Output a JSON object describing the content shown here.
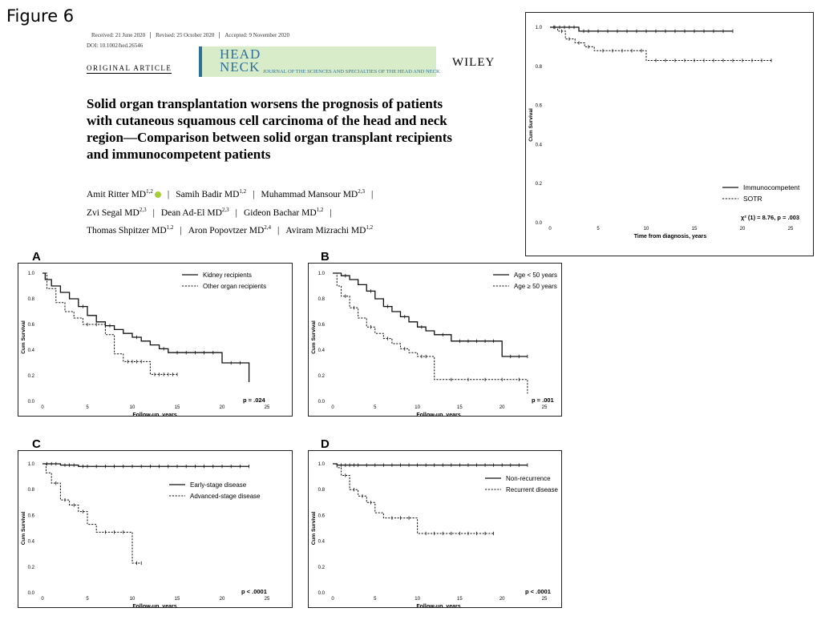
{
  "figure_label": "Figure 6",
  "paper": {
    "received": "Received: 21 June 2020",
    "revised": "Revised: 25 October 2020",
    "accepted": "Accepted: 9 November 2020",
    "doi": "DOI: 10.1002/hed.26546",
    "article_type": "ORIGINAL ARTICLE",
    "journal_line1": "HEAD",
    "journal_line2": "NECK",
    "journal_sub": "JOURNAL OF THE SCIENCES AND SPECIALTIES OF THE HEAD AND NECK",
    "publisher": "WILEY",
    "title": "Solid organ transplantation worsens the prognosis of patients with cutaneous squamous cell carcinoma of the head and neck region—Comparison between solid organ transplant recipients and immunocompetent patients",
    "authors": [
      {
        "name": "Amit Ritter MD",
        "sup": "1,2"
      },
      {
        "name": "Samih Badir MD",
        "sup": "1,2"
      },
      {
        "name": "Muhammad Mansour MD",
        "sup": "2,3"
      },
      {
        "name": "Zvi Segal MD",
        "sup": "2,3"
      },
      {
        "name": "Dean Ad-El MD",
        "sup": "2,3"
      },
      {
        "name": "Gideon Bachar MD",
        "sup": "1,2"
      },
      {
        "name": "Thomas Shpitzer MD",
        "sup": "1,2"
      },
      {
        "name": "Aron Popovtzer MD",
        "sup": "2,4"
      },
      {
        "name": "Aviram Mizrachi MD",
        "sup": "1,2"
      }
    ]
  },
  "chart_data": [
    {
      "id": "main",
      "type": "line",
      "panel_label": "",
      "xlabel": "Time from diagnosis, years",
      "ylabel": "Cum Survival",
      "xticks": [
        0,
        5,
        10,
        15,
        20,
        25
      ],
      "yticks": [
        0.0,
        0.2,
        0.4,
        0.6,
        0.8,
        1.0
      ],
      "xlim": [
        0,
        25
      ],
      "ylim": [
        0,
        1.0
      ],
      "legend_position": "bottom-right",
      "annotation": "χ² (1) = 8.76, p = .003",
      "series": [
        {
          "name": "Immunocompetent",
          "style": "solid",
          "steps": [
            [
              0,
              1.0
            ],
            [
              3,
              0.98
            ],
            [
              19,
              0.98
            ]
          ],
          "censors": [
            0.5,
            1,
            1.5,
            2,
            2.5,
            3.5,
            4,
            5,
            6,
            7,
            8,
            9,
            10,
            11,
            12,
            13,
            14,
            15,
            16,
            17,
            18,
            19
          ]
        },
        {
          "name": "SOTR",
          "style": "dashed",
          "steps": [
            [
              0,
              1.0
            ],
            [
              0.8,
              0.98
            ],
            [
              1.6,
              0.94
            ],
            [
              2.6,
              0.92
            ],
            [
              3.6,
              0.9
            ],
            [
              4.6,
              0.88
            ],
            [
              10,
              0.83
            ],
            [
              23,
              0.83
            ]
          ],
          "censors": [
            0.4,
            1.2,
            2,
            3,
            4,
            5.5,
            6.5,
            7.5,
            8.5,
            9.5,
            11,
            12,
            13,
            14,
            15,
            16,
            17,
            18,
            19,
            20,
            21,
            22,
            23
          ]
        }
      ]
    },
    {
      "id": "A",
      "type": "line",
      "panel_label": "A",
      "xlabel": "Follow-up, years",
      "ylabel": "Cum Survival",
      "xticks": [
        0,
        5,
        10,
        15,
        20,
        25
      ],
      "yticks": [
        0.0,
        0.2,
        0.4,
        0.6,
        0.8,
        1.0
      ],
      "xlim": [
        0,
        25
      ],
      "ylim": [
        0,
        1.0
      ],
      "legend_position": "top-right",
      "annotation": "p = .024",
      "series": [
        {
          "name": "Kidney recipients",
          "style": "solid",
          "steps": [
            [
              0,
              1.0
            ],
            [
              0.3,
              0.95
            ],
            [
              1,
              0.9
            ],
            [
              2,
              0.85
            ],
            [
              3,
              0.8
            ],
            [
              4,
              0.74
            ],
            [
              5,
              0.67
            ],
            [
              6,
              0.62
            ],
            [
              7,
              0.59
            ],
            [
              8,
              0.56
            ],
            [
              9,
              0.53
            ],
            [
              10,
              0.5
            ],
            [
              11,
              0.47
            ],
            [
              12,
              0.44
            ],
            [
              13,
              0.41
            ],
            [
              14,
              0.38
            ],
            [
              20,
              0.3
            ],
            [
              23,
              0.15
            ]
          ],
          "censors": [
            4.5,
            7.5,
            10.5,
            13.5,
            15,
            16,
            17,
            18,
            19,
            21,
            22
          ]
        },
        {
          "name": "Other organ recipients",
          "style": "dashed",
          "steps": [
            [
              0,
              1.0
            ],
            [
              0.5,
              0.88
            ],
            [
              1.5,
              0.77
            ],
            [
              2.5,
              0.7
            ],
            [
              3.5,
              0.65
            ],
            [
              4.5,
              0.6
            ],
            [
              7,
              0.52
            ],
            [
              8,
              0.37
            ],
            [
              9,
              0.31
            ],
            [
              12,
              0.21
            ],
            [
              15,
              0.21
            ]
          ],
          "censors": [
            5,
            6,
            9.5,
            10,
            10.5,
            11,
            12.5,
            13,
            13.5,
            14,
            14.5,
            15
          ]
        }
      ]
    },
    {
      "id": "B",
      "type": "line",
      "panel_label": "B",
      "xlabel": "Follow-up, years",
      "ylabel": "Cum Survival",
      "xticks": [
        0,
        5,
        10,
        15,
        20,
        25
      ],
      "yticks": [
        0.0,
        0.2,
        0.4,
        0.6,
        0.8,
        1.0
      ],
      "xlim": [
        0,
        25
      ],
      "ylim": [
        0,
        1.0
      ],
      "legend_position": "top-right",
      "annotation": "p = .001",
      "series": [
        {
          "name": "Age < 50 years",
          "style": "solid",
          "steps": [
            [
              0,
              1.0
            ],
            [
              1,
              0.98
            ],
            [
              2,
              0.95
            ],
            [
              3,
              0.91
            ],
            [
              4,
              0.86
            ],
            [
              5,
              0.8
            ],
            [
              6,
              0.74
            ],
            [
              7,
              0.7
            ],
            [
              8,
              0.66
            ],
            [
              9,
              0.62
            ],
            [
              10,
              0.58
            ],
            [
              11,
              0.55
            ],
            [
              12,
              0.52
            ],
            [
              14,
              0.47
            ],
            [
              20,
              0.35
            ],
            [
              23,
              0.35
            ]
          ],
          "censors": [
            1.5,
            4.5,
            6.5,
            8.5,
            10.5,
            13,
            15,
            16,
            17,
            18,
            19,
            21,
            22,
            23
          ]
        },
        {
          "name": "Age ≥ 50 years",
          "style": "dashed",
          "steps": [
            [
              0,
              1.0
            ],
            [
              0.5,
              0.9
            ],
            [
              1,
              0.82
            ],
            [
              2,
              0.73
            ],
            [
              3,
              0.65
            ],
            [
              4,
              0.58
            ],
            [
              5,
              0.53
            ],
            [
              6,
              0.49
            ],
            [
              7,
              0.45
            ],
            [
              8,
              0.41
            ],
            [
              9,
              0.38
            ],
            [
              10,
              0.35
            ],
            [
              12,
              0.17
            ],
            [
              23,
              0.06
            ]
          ],
          "censors": [
            1.5,
            2.5,
            4.5,
            6.5,
            8.5,
            10.5,
            11,
            14,
            16,
            18,
            20,
            22
          ]
        }
      ]
    },
    {
      "id": "C",
      "type": "line",
      "panel_label": "C",
      "xlabel": "Follow-up, years",
      "ylabel": "Cum Survival",
      "xticks": [
        0,
        5,
        10,
        15,
        20,
        25
      ],
      "yticks": [
        0.0,
        0.2,
        0.4,
        0.6,
        0.8,
        1.0
      ],
      "xlim": [
        0,
        25
      ],
      "ylim": [
        0,
        1.0
      ],
      "legend_position": "top-right",
      "annotation": "p < .0001",
      "series": [
        {
          "name": "Early-stage disease",
          "style": "solid",
          "steps": [
            [
              0,
              1.0
            ],
            [
              2,
              0.99
            ],
            [
              4,
              0.98
            ],
            [
              23,
              0.98
            ]
          ],
          "censors": [
            0.5,
            1,
            1.5,
            2.5,
            3,
            3.5,
            4.5,
            5,
            6,
            7,
            8,
            9,
            10,
            11,
            12,
            13,
            14,
            15,
            16,
            17,
            18,
            19,
            20,
            21,
            22,
            23
          ]
        },
        {
          "name": "Advanced-stage disease",
          "style": "dashed",
          "steps": [
            [
              0,
              1.0
            ],
            [
              0.4,
              0.93
            ],
            [
              1,
              0.85
            ],
            [
              2,
              0.72
            ],
            [
              3,
              0.68
            ],
            [
              4,
              0.63
            ],
            [
              5,
              0.53
            ],
            [
              6,
              0.47
            ],
            [
              10,
              0.23
            ],
            [
              11,
              0.23
            ]
          ],
          "censors": [
            1.5,
            2.5,
            3.5,
            4.5,
            7,
            8,
            9,
            10.5,
            11
          ]
        }
      ]
    },
    {
      "id": "D",
      "type": "line",
      "panel_label": "D",
      "xlabel": "Follow-up, years",
      "ylabel": "Cum Survival",
      "xticks": [
        0,
        5,
        10,
        15,
        20,
        25
      ],
      "yticks": [
        0.0,
        0.2,
        0.4,
        0.6,
        0.8,
        1.0
      ],
      "xlim": [
        0,
        25
      ],
      "ylim": [
        0,
        1.0
      ],
      "legend_position": "top-right",
      "annotation": "p < .0001",
      "series": [
        {
          "name": "Non-recurrence",
          "style": "solid",
          "steps": [
            [
              0,
              1.0
            ],
            [
              0.5,
              0.99
            ],
            [
              23,
              0.99
            ]
          ],
          "censors": [
            1,
            1.5,
            2,
            2.5,
            3,
            4,
            5,
            6,
            7,
            8,
            9,
            10,
            11,
            12,
            13,
            14,
            15,
            16,
            17,
            18,
            19,
            20,
            21,
            22,
            23
          ]
        },
        {
          "name": "Recurrent disease",
          "style": "dashed",
          "steps": [
            [
              0,
              1.0
            ],
            [
              0.5,
              0.97
            ],
            [
              1,
              0.91
            ],
            [
              2,
              0.8
            ],
            [
              3,
              0.75
            ],
            [
              4,
              0.7
            ],
            [
              5,
              0.62
            ],
            [
              6,
              0.58
            ],
            [
              10,
              0.46
            ],
            [
              19,
              0.46
            ]
          ],
          "censors": [
            1.5,
            2.5,
            3.5,
            4.5,
            7,
            8,
            9,
            11,
            12,
            13,
            14,
            15,
            16,
            17,
            18,
            19
          ]
        }
      ]
    }
  ]
}
